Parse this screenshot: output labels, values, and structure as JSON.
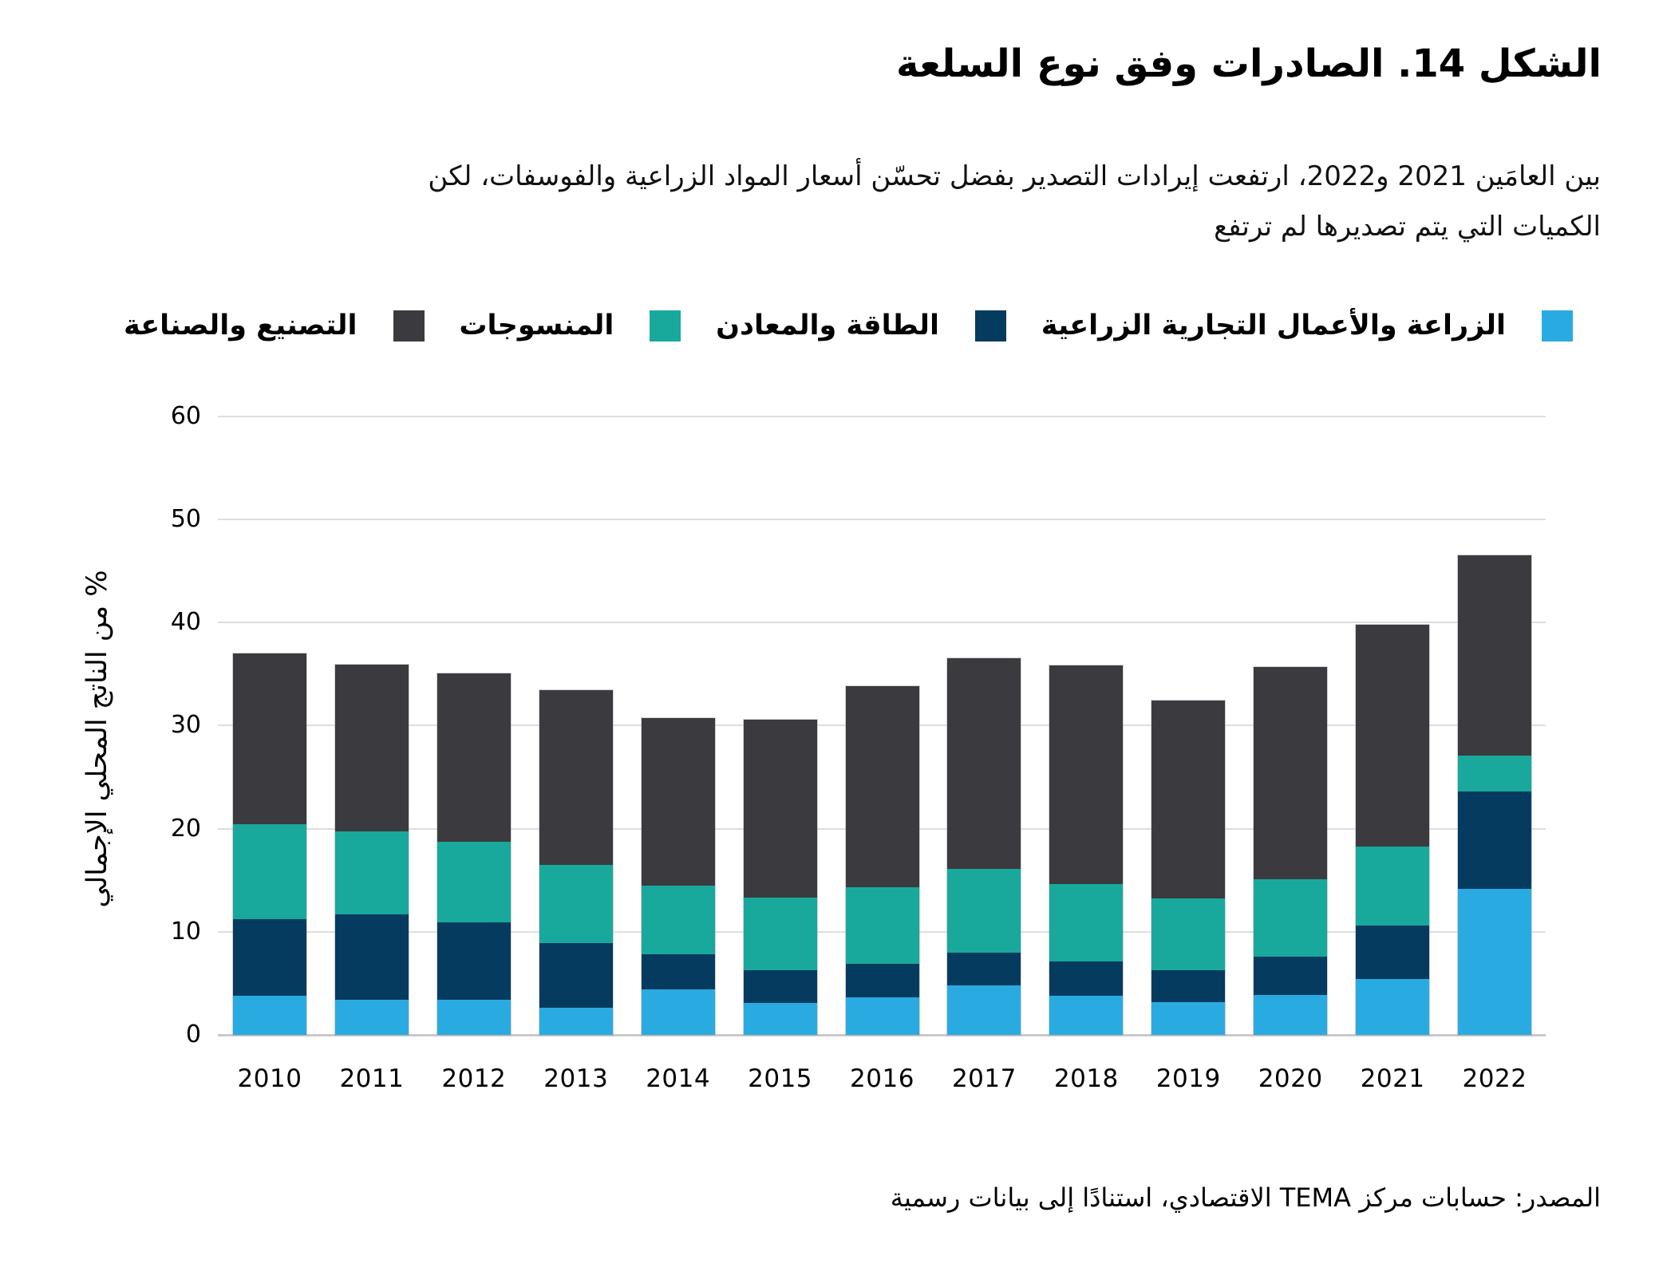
{
  "title": "الشكل 14. الصادرات وفق نوع السلعة",
  "subtitle": {
    "line1": "بين العامَين 2021 و2022، ارتفعت إيرادات التصدير بفضل تحسّن أسعار المواد الزراعية والفوسفات، لكن",
    "line2": "الكميات التي يتم تصديرها لم ترتفع"
  },
  "source": "المصدر: حسابات مركز TEMA الاقتصادي، استنادًا إلى بيانات رسمية",
  "colors": {
    "agriculture": "#29ABE2",
    "energy_minerals": "#063B60",
    "textiles": "#18A99C",
    "manufacturing": "#3B3A3E",
    "gridline": "#DEDEDE",
    "axis_line": "#C9C9C9"
  },
  "chart_data": {
    "type": "bar",
    "stacked": true,
    "title": "الشكل 14. الصادرات وفق نوع السلعة",
    "ylabel": "% من الناتج المحلي الإجمالي",
    "xlabel": "",
    "ylim": [
      0,
      60
    ],
    "yticks": [
      0,
      10,
      20,
      30,
      40,
      50,
      60
    ],
    "grid": "horizontal",
    "legend_position": "top",
    "categories": [
      "2010",
      "2011",
      "2012",
      "2013",
      "2014",
      "2015",
      "2016",
      "2017",
      "2018",
      "2019",
      "2020",
      "2021",
      "2022"
    ],
    "series": [
      {
        "name": "الزراعة والأعمال التجارية الزراعية",
        "color": "#29ABE2",
        "values": [
          3.8,
          3.4,
          3.4,
          2.6,
          4.4,
          3.1,
          3.6,
          4.8,
          3.8,
          3.2,
          3.9,
          5.4,
          14.2
        ]
      },
      {
        "name": "الطاقة والمعادن",
        "color": "#063B60",
        "values": [
          7.4,
          8.3,
          7.5,
          6.3,
          3.4,
          3.2,
          3.3,
          3.2,
          3.3,
          3.1,
          3.7,
          5.2,
          9.4
        ]
      },
      {
        "name": "المنسوجات",
        "color": "#18A99C",
        "values": [
          9.2,
          8.0,
          7.8,
          7.6,
          6.7,
          7.0,
          7.4,
          8.1,
          7.5,
          6.9,
          7.5,
          7.7,
          3.5
        ]
      },
      {
        "name": "التصنيع والصناعة",
        "color": "#3B3A3E",
        "values": [
          16.6,
          16.2,
          16.4,
          16.9,
          16.2,
          17.3,
          19.5,
          20.4,
          21.2,
          19.2,
          20.6,
          21.5,
          19.4
        ]
      }
    ],
    "totals": [
      37.0,
      35.9,
      35.1,
      33.4,
      30.7,
      30.6,
      33.8,
      36.5,
      35.8,
      32.4,
      35.7,
      39.8,
      46.5
    ]
  }
}
